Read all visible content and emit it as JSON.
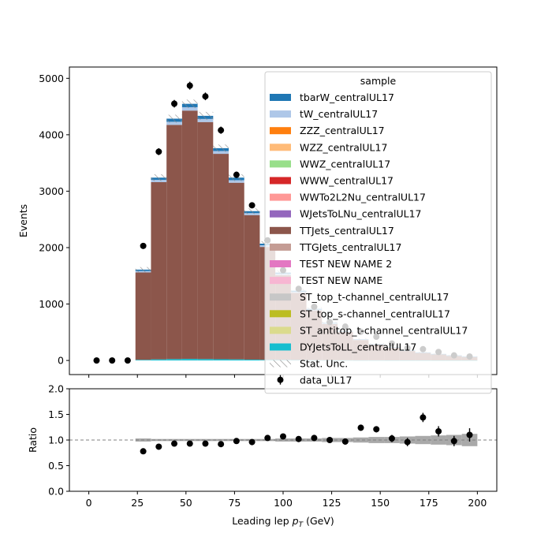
{
  "chart_data": [
    {
      "type": "bar",
      "stacked": true,
      "xlim": [
        -10,
        210
      ],
      "ylim": [
        -250,
        5200
      ],
      "ylabel": "Events",
      "xticks": [
        0,
        25,
        50,
        75,
        100,
        125,
        150,
        175,
        200
      ],
      "yticks": [
        0,
        1000,
        2000,
        3000,
        4000,
        5000
      ],
      "ytick_labels": [
        "0",
        "1000",
        "2000",
        "3000",
        "4000",
        "5000"
      ],
      "bin_edges": [
        24,
        32,
        40,
        48,
        56,
        64,
        72,
        80,
        88,
        96,
        104,
        112,
        120,
        128,
        136,
        144,
        152,
        160,
        168,
        176,
        184,
        192,
        200
      ],
      "series": [
        {
          "name": "DYJetsToLL_centralUL17",
          "color": "#17becf",
          "values": [
            12,
            20,
            25,
            28,
            25,
            22,
            20,
            16,
            12,
            10,
            8,
            6,
            5,
            4,
            3,
            3,
            2,
            2,
            2,
            1,
            1,
            1
          ]
        },
        {
          "name": "ST_antitop_t-channel_centralUL17",
          "color": "#dbdb8d",
          "values": [
            0,
            0,
            0,
            0,
            0,
            0,
            0,
            0,
            0,
            0,
            0,
            0,
            0,
            0,
            0,
            0,
            0,
            0,
            0,
            0,
            0,
            0
          ]
        },
        {
          "name": "ST_top_s-channel_centralUL17",
          "color": "#bcbd22",
          "values": [
            0,
            0,
            0,
            0,
            0,
            0,
            0,
            0,
            0,
            0,
            0,
            0,
            0,
            0,
            0,
            0,
            0,
            0,
            0,
            0,
            0,
            0
          ]
        },
        {
          "name": "ST_top_t-channel_centralUL17",
          "color": "#c7c7c7",
          "values": [
            0,
            0,
            0,
            0,
            0,
            0,
            0,
            0,
            0,
            0,
            0,
            0,
            0,
            0,
            0,
            0,
            0,
            0,
            0,
            0,
            0,
            0
          ]
        },
        {
          "name": "TEST NEW NAME",
          "color": "#f7b6d2",
          "values": [
            0,
            0,
            0,
            0,
            0,
            0,
            0,
            0,
            0,
            0,
            0,
            0,
            0,
            0,
            0,
            0,
            0,
            0,
            0,
            0,
            0,
            0
          ]
        },
        {
          "name": "TEST NEW NAME 2",
          "color": "#e377c2",
          "values": [
            0,
            0,
            0,
            0,
            0,
            0,
            0,
            0,
            0,
            0,
            0,
            0,
            0,
            0,
            0,
            0,
            0,
            0,
            0,
            0,
            0,
            0
          ]
        },
        {
          "name": "TTGJets_centralUL17",
          "color": "#c49c94",
          "values": [
            0,
            0,
            0,
            0,
            0,
            0,
            0,
            0,
            0,
            0,
            0,
            0,
            0,
            0,
            0,
            0,
            0,
            0,
            0,
            0,
            0,
            0
          ]
        },
        {
          "name": "TTJets_centralUL17",
          "color": "#8c564b",
          "values": [
            1548,
            3140,
            4150,
            4400,
            4200,
            3640,
            3130,
            2560,
            2000,
            1500,
            1190,
            880,
            640,
            500,
            360,
            280,
            225,
            170,
            135,
            110,
            85,
            65
          ]
        },
        {
          "name": "WJetsToLNu_centralUL17",
          "color": "#9467bd",
          "values": [
            0,
            0,
            0,
            0,
            0,
            0,
            0,
            0,
            0,
            0,
            0,
            0,
            0,
            0,
            0,
            0,
            0,
            0,
            0,
            0,
            0,
            0
          ]
        },
        {
          "name": "WWTo2L2Nu_centralUL17",
          "color": "#ff9896",
          "values": [
            0,
            0,
            0,
            0,
            0,
            0,
            0,
            0,
            0,
            0,
            0,
            0,
            0,
            0,
            0,
            0,
            0,
            0,
            0,
            0,
            0,
            0
          ]
        },
        {
          "name": "WWW_centralUL17",
          "color": "#d62728",
          "values": [
            0,
            0,
            0,
            0,
            0,
            0,
            0,
            0,
            0,
            0,
            0,
            0,
            0,
            0,
            0,
            0,
            0,
            0,
            0,
            0,
            0,
            0
          ]
        },
        {
          "name": "WWZ_centralUL17",
          "color": "#98df8a",
          "values": [
            0,
            0,
            0,
            0,
            0,
            0,
            0,
            0,
            0,
            0,
            0,
            0,
            0,
            0,
            0,
            0,
            0,
            0,
            0,
            0,
            0,
            0
          ]
        },
        {
          "name": "WZZ_centralUL17",
          "color": "#ffbb78",
          "values": [
            0,
            0,
            0,
            0,
            0,
            0,
            0,
            0,
            0,
            0,
            0,
            0,
            0,
            0,
            0,
            0,
            0,
            0,
            0,
            0,
            0,
            0
          ]
        },
        {
          "name": "ZZZ_centralUL17",
          "color": "#ff7f0e",
          "values": [
            0,
            0,
            0,
            0,
            0,
            0,
            0,
            0,
            0,
            0,
            0,
            0,
            0,
            0,
            0,
            0,
            0,
            0,
            0,
            0,
            0,
            0
          ]
        },
        {
          "name": "tW_centralUL17",
          "color": "#aec7e8",
          "values": [
            25,
            40,
            55,
            60,
            55,
            50,
            45,
            35,
            30,
            25,
            20,
            15,
            12,
            9,
            7,
            6,
            5,
            4,
            3,
            3,
            2,
            2
          ]
        },
        {
          "name": "tbarW_centralUL17",
          "color": "#1f77b4",
          "values": [
            25,
            40,
            55,
            60,
            55,
            50,
            45,
            35,
            28,
            22,
            18,
            14,
            10,
            8,
            6,
            5,
            4,
            3,
            3,
            2,
            2,
            1
          ]
        }
      ],
      "stat_unc": {
        "name": "Stat. Unc.",
        "values": [
          45,
          60,
          70,
          75,
          70,
          65,
          60,
          50,
          45,
          40,
          35,
          30,
          25,
          22,
          20,
          17,
          15,
          13,
          11,
          10,
          9,
          8
        ]
      },
      "data": {
        "name": "data_UL17",
        "x": [
          4,
          12,
          20,
          28,
          36,
          44,
          52,
          60,
          68,
          76,
          84,
          92,
          100,
          108,
          116,
          124,
          132,
          140,
          148,
          156,
          164,
          172,
          180,
          188,
          196
        ],
        "y": [
          0,
          0,
          0,
          2030,
          3700,
          4550,
          4870,
          4680,
          4080,
          3290,
          2750,
          2130,
          1600,
          1270,
          950,
          680,
          600,
          510,
          420,
          300,
          220,
          200,
          150,
          90,
          70
        ],
        "yerr": [
          0,
          0,
          0,
          45,
          61,
          67,
          70,
          68,
          64,
          57,
          52,
          46,
          40,
          36,
          31,
          26,
          24,
          23,
          20,
          17,
          15,
          14,
          12,
          10,
          8
        ]
      },
      "legend": {
        "title": "sample",
        "placement": "upper right"
      }
    },
    {
      "type": "scatter",
      "xlabel": "Leading lep $p_T$ (GeV)",
      "ylabel": "Ratio",
      "xlim": [
        -10,
        210
      ],
      "ylim": [
        0,
        2
      ],
      "xticks": [
        0,
        25,
        50,
        75,
        100,
        125,
        150,
        175,
        200
      ],
      "xtick_labels": [
        "0",
        "25",
        "50",
        "75",
        "100",
        "125",
        "150",
        "175",
        "200"
      ],
      "yticks": [
        0,
        0.5,
        1.0,
        1.5,
        2.0
      ],
      "ytick_labels": [
        "0.0",
        "0.5",
        "1.0",
        "1.5",
        "2.0"
      ],
      "reference_line": 1.0,
      "x": [
        28,
        36,
        44,
        52,
        60,
        68,
        76,
        84,
        92,
        100,
        108,
        116,
        124,
        132,
        140,
        148,
        156,
        164,
        172,
        180,
        188,
        196
      ],
      "ratio": [
        0.78,
        0.87,
        0.93,
        0.93,
        0.93,
        0.92,
        0.98,
        0.96,
        1.04,
        1.07,
        1.02,
        1.04,
        1.0,
        0.97,
        1.24,
        1.21,
        1.03,
        0.96,
        1.44,
        1.17,
        0.98,
        1.1
      ],
      "ratio_err": [
        0.02,
        0.02,
        0.02,
        0.02,
        0.02,
        0.02,
        0.02,
        0.02,
        0.03,
        0.03,
        0.03,
        0.04,
        0.04,
        0.05,
        0.06,
        0.06,
        0.07,
        0.08,
        0.09,
        0.1,
        0.1,
        0.13
      ],
      "unc_band": [
        0.03,
        0.02,
        0.02,
        0.02,
        0.02,
        0.02,
        0.02,
        0.02,
        0.02,
        0.03,
        0.03,
        0.03,
        0.04,
        0.04,
        0.05,
        0.06,
        0.06,
        0.07,
        0.08,
        0.09,
        0.1,
        0.12
      ]
    }
  ]
}
